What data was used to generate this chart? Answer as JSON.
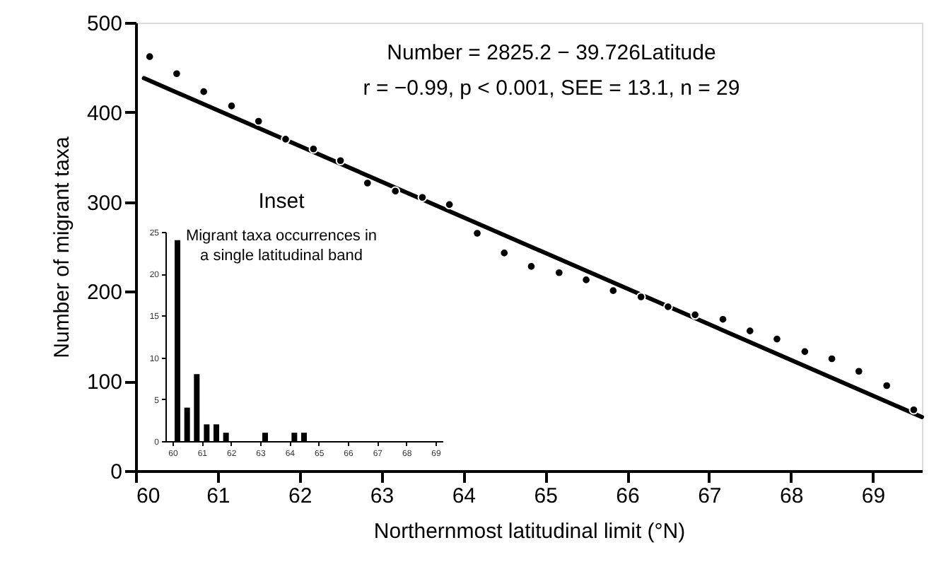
{
  "chart_data": [
    {
      "type": "scatter",
      "xlabel": "Northernmost latitudinal limit (°N)",
      "ylabel": "Number of migrant taxa",
      "annotations": [
        "Number = 2825.2 − 39.726Latitude",
        "r = −0.99, p < 0.001, SEE = 13.1, n = 29"
      ],
      "series": [
        {
          "type": "scatter",
          "color": "#000000",
          "marker": "circle",
          "x": [
            60.17,
            60.5,
            60.83,
            61.17,
            61.5,
            61.83,
            62.17,
            62.5,
            62.83,
            63.17,
            63.5,
            63.83,
            64.17,
            64.5,
            64.83,
            65.17,
            65.5,
            65.83,
            66.17,
            66.5,
            66.83,
            67.17,
            67.5,
            67.83,
            68.17,
            68.5,
            68.83,
            69.17,
            69.5
          ],
          "values": [
            462,
            443,
            423,
            407,
            390,
            370,
            359,
            346,
            321,
            312,
            305,
            297,
            265,
            243,
            228,
            221,
            213,
            201,
            194,
            183,
            174,
            169,
            156,
            147,
            133,
            125,
            111,
            95,
            68
          ]
        },
        {
          "type": "line",
          "color": "#000000",
          "line_style": "solid",
          "x": [
            60.1,
            69.6
          ],
          "values": [
            438,
            60
          ]
        }
      ],
      "xlim": [
        60,
        69.6
      ],
      "xticks": [
        60,
        61,
        62,
        63,
        64,
        65,
        66,
        67,
        68,
        69
      ],
      "ylim": [
        0,
        500
      ],
      "yticks": [
        0,
        100,
        200,
        300,
        400,
        500
      ],
      "grid": false
    },
    {
      "type": "bar",
      "annotations": [
        "Inset",
        "Migrant taxa occurrences in a single latitudinal band"
      ],
      "x": [
        60.17,
        60.5,
        60.83,
        61.17,
        61.5,
        61.83,
        63.17,
        64.17,
        64.5
      ],
      "values": [
        24,
        4,
        8,
        2,
        2,
        1,
        1,
        1,
        1
      ],
      "color": "#000000",
      "xlim": [
        60,
        69
      ],
      "xticks": [
        60,
        61,
        62,
        63,
        64,
        65,
        66,
        67,
        68,
        69
      ],
      "ylim": [
        0,
        25
      ],
      "yticks": [
        0,
        5,
        10,
        15,
        20,
        25
      ],
      "grid": false
    }
  ]
}
